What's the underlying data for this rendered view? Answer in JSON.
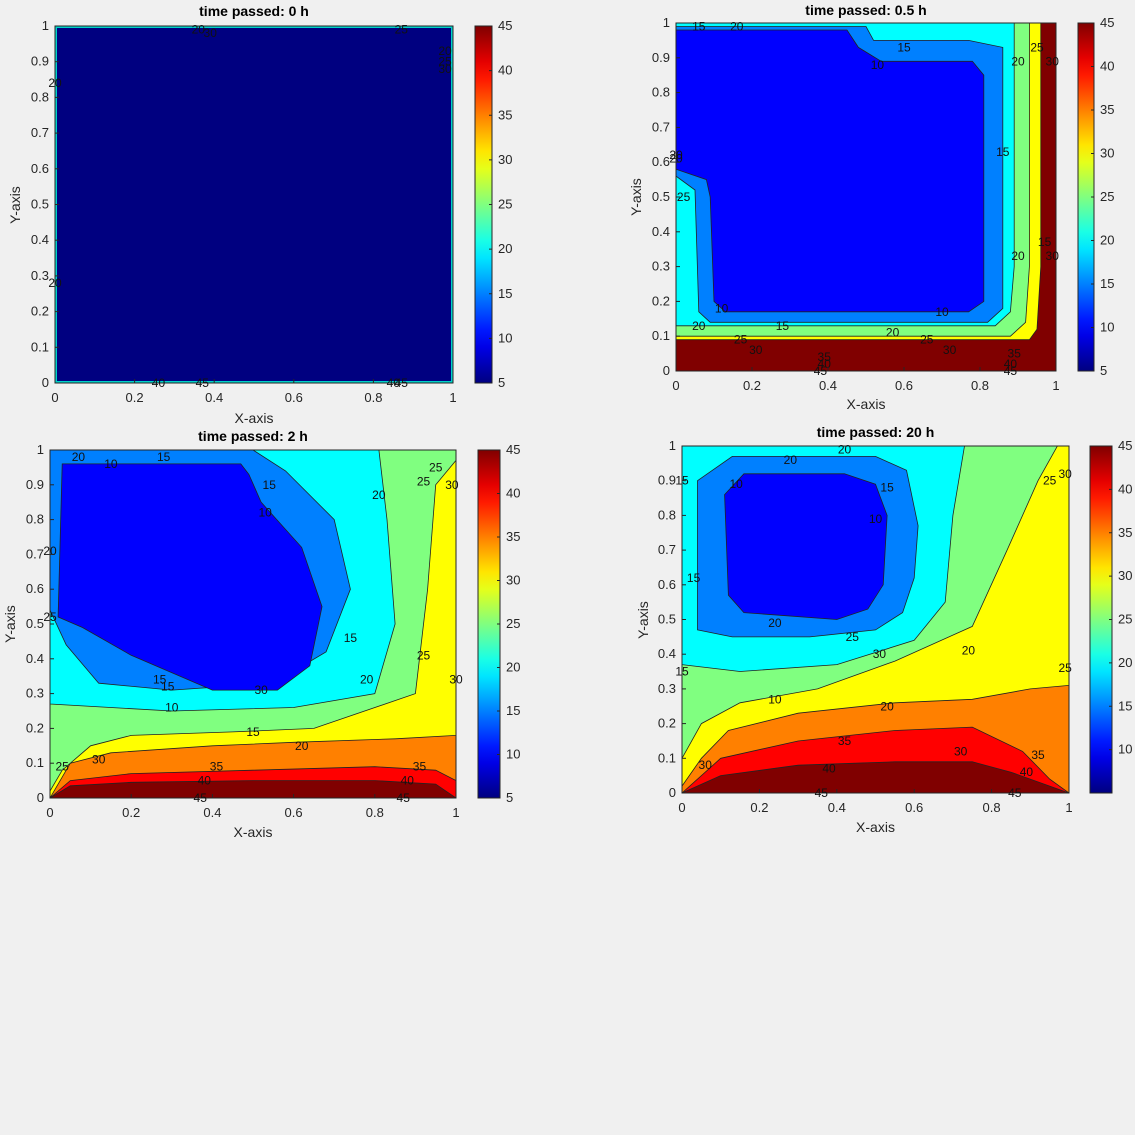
{
  "chart_data": [
    {
      "type": "contourf",
      "title": "time passed: 0 h",
      "xlabel": "X-axis",
      "ylabel": "Y-axis",
      "xlim": [
        0,
        1
      ],
      "ylim": [
        0,
        1
      ],
      "xticks": [
        "0",
        "0.2",
        "0.4",
        "0.6",
        "0.8",
        "1"
      ],
      "yticks": [
        "0",
        "0.1",
        "0.2",
        "0.3",
        "0.4",
        "0.5",
        "0.6",
        "0.7",
        "0.8",
        "0.9",
        "1"
      ],
      "colorbar": {
        "min": 5,
        "max": 45,
        "ticks": [
          "5",
          "10",
          "15",
          "20",
          "25",
          "30",
          "35",
          "40",
          "45"
        ]
      },
      "levels": [
        {
          "value": 5,
          "label": "5"
        }
      ],
      "contour_labels": [
        "20",
        "25",
        "30",
        "20",
        "25",
        "30",
        "40",
        "45",
        "40",
        "45",
        "20",
        "20"
      ]
    },
    {
      "type": "contourf",
      "title": "time passed: 0.5 h",
      "xlabel": "X-axis",
      "ylabel": "Y-axis",
      "xlim": [
        0,
        1
      ],
      "ylim": [
        0,
        1
      ],
      "xticks": [
        "0",
        "0.2",
        "0.4",
        "0.6",
        "0.8",
        "1"
      ],
      "yticks": [
        "0",
        "0.1",
        "0.2",
        "0.3",
        "0.4",
        "0.5",
        "0.6",
        "0.7",
        "0.8",
        "0.9",
        "1"
      ],
      "colorbar": {
        "min": 5,
        "max": 45,
        "ticks": [
          "5",
          "10",
          "15",
          "20",
          "25",
          "30",
          "35",
          "40",
          "45"
        ]
      },
      "levels": [
        {
          "value": 30,
          "label": "30",
          "boundary": [
            [
              0,
              0.09
            ],
            [
              0.93,
              0.09
            ],
            [
              0.95,
              0.12
            ],
            [
              0.96,
              0.3
            ],
            [
              0.96,
              1
            ],
            [
              0,
              1
            ]
          ]
        },
        {
          "value": 25,
          "label": "25",
          "boundary": [
            [
              0,
              0.1
            ],
            [
              0.88,
              0.1
            ],
            [
              0.92,
              0.14
            ],
            [
              0.93,
              0.3
            ],
            [
              0.93,
              1
            ],
            [
              0,
              1
            ]
          ]
        },
        {
          "value": 20,
          "label": "20",
          "boundary": [
            [
              0,
              0.13
            ],
            [
              0.84,
              0.13
            ],
            [
              0.88,
              0.17
            ],
            [
              0.89,
              0.3
            ],
            [
              0.89,
              1
            ],
            [
              0,
              1
            ]
          ]
        },
        {
          "value": 15,
          "label": "15",
          "boundary": [
            [
              0,
              0.56
            ],
            [
              0.05,
              0.52
            ],
            [
              0.06,
              0.17
            ],
            [
              0.09,
              0.14
            ],
            [
              0.82,
              0.14
            ],
            [
              0.86,
              0.18
            ],
            [
              0.86,
              0.93
            ],
            [
              0.77,
              0.95
            ],
            [
              0.52,
              0.95
            ],
            [
              0.5,
              0.99
            ],
            [
              0,
              0.99
            ]
          ]
        },
        {
          "value": 10,
          "label": "10",
          "boundary": [
            [
              0,
              0.58
            ],
            [
              0.08,
              0.55
            ],
            [
              0.09,
              0.5
            ],
            [
              0.1,
              0.2
            ],
            [
              0.13,
              0.17
            ],
            [
              0.77,
              0.17
            ],
            [
              0.81,
              0.2
            ],
            [
              0.81,
              0.85
            ],
            [
              0.78,
              0.89
            ],
            [
              0.54,
              0.89
            ],
            [
              0.48,
              0.93
            ],
            [
              0.45,
              0.98
            ],
            [
              0,
              0.98
            ]
          ]
        }
      ],
      "contour_labels": [
        "15",
        "20",
        "15",
        "10",
        "20",
        "25",
        "30",
        "15",
        "20",
        "25",
        "30",
        "20",
        "15",
        "10",
        "15",
        "20",
        "25",
        "30",
        "35",
        "40",
        "45",
        "10",
        "45",
        "40",
        "35",
        "20",
        "25",
        "30",
        "20"
      ]
    },
    {
      "type": "contourf",
      "title": "time passed: 2 h",
      "xlabel": "X-axis",
      "ylabel": "Y-axis",
      "xlim": [
        0,
        1
      ],
      "ylim": [
        0,
        1
      ],
      "xticks": [
        "0",
        "0.2",
        "0.4",
        "0.6",
        "0.8",
        "1"
      ],
      "yticks": [
        "0",
        "0.1",
        "0.2",
        "0.3",
        "0.4",
        "0.5",
        "0.6",
        "0.7",
        "0.8",
        "0.9",
        "1"
      ],
      "colorbar": {
        "min": 5,
        "max": 45,
        "ticks": [
          "5",
          "10",
          "15",
          "20",
          "25",
          "30",
          "35",
          "40",
          "45"
        ]
      },
      "levels": [
        {
          "value": 40,
          "label": "40",
          "boundary": [
            [
              0,
              0
            ],
            [
              0.05,
              0.035
            ],
            [
              0.2,
              0.045
            ],
            [
              0.5,
              0.05
            ],
            [
              0.8,
              0.05
            ],
            [
              0.95,
              0.04
            ],
            [
              1,
              0
            ],
            [
              1,
              1
            ],
            [
              0,
              1
            ]
          ]
        },
        {
          "value": 35,
          "label": "35",
          "boundary": [
            [
              0,
              0
            ],
            [
              0.05,
              0.05
            ],
            [
              0.2,
              0.07
            ],
            [
              0.5,
              0.08
            ],
            [
              0.8,
              0.09
            ],
            [
              0.95,
              0.08
            ],
            [
              1,
              0.05
            ],
            [
              1,
              1
            ],
            [
              0,
              1
            ]
          ]
        },
        {
          "value": 30,
          "label": "30",
          "boundary": [
            [
              0,
              0
            ],
            [
              0.05,
              0.1
            ],
            [
              0.15,
              0.13
            ],
            [
              0.4,
              0.15
            ],
            [
              0.6,
              0.16
            ],
            [
              0.85,
              0.17
            ],
            [
              1,
              0.18
            ],
            [
              1,
              1
            ],
            [
              0,
              1
            ]
          ]
        },
        {
          "value": 25,
          "label": "25",
          "boundary": [
            [
              0,
              0.02
            ],
            [
              0.03,
              0.08
            ],
            [
              0.1,
              0.15
            ],
            [
              0.2,
              0.18
            ],
            [
              0.45,
              0.19
            ],
            [
              0.65,
              0.2
            ],
            [
              0.9,
              0.3
            ],
            [
              0.93,
              0.6
            ],
            [
              0.95,
              0.9
            ],
            [
              1,
              0.97
            ],
            [
              1,
              1
            ],
            [
              0,
              1
            ]
          ]
        },
        {
          "value": 20,
          "label": "20",
          "boundary": [
            [
              0,
              0.27
            ],
            [
              0.3,
              0.25
            ],
            [
              0.6,
              0.26
            ],
            [
              0.8,
              0.3
            ],
            [
              0.85,
              0.5
            ],
            [
              0.83,
              0.8
            ],
            [
              0.81,
              1
            ],
            [
              0,
              1
            ]
          ]
        },
        {
          "value": 15,
          "label": "15",
          "boundary": [
            [
              0,
              0.54
            ],
            [
              0.04,
              0.44
            ],
            [
              0.12,
              0.33
            ],
            [
              0.3,
              0.31
            ],
            [
              0.55,
              0.33
            ],
            [
              0.68,
              0.42
            ],
            [
              0.74,
              0.6
            ],
            [
              0.7,
              0.8
            ],
            [
              0.58,
              0.94
            ],
            [
              0.5,
              1
            ],
            [
              0,
              1
            ]
          ]
        },
        {
          "value": 10,
          "label": "10",
          "boundary": [
            [
              0.02,
              0.52
            ],
            [
              0.08,
              0.49
            ],
            [
              0.2,
              0.41
            ],
            [
              0.4,
              0.31
            ],
            [
              0.56,
              0.31
            ],
            [
              0.64,
              0.38
            ],
            [
              0.67,
              0.55
            ],
            [
              0.62,
              0.72
            ],
            [
              0.52,
              0.85
            ],
            [
              0.49,
              0.93
            ],
            [
              0.47,
              0.96
            ],
            [
              0.03,
              0.96
            ]
          ]
        }
      ],
      "contour_labels": [
        "20",
        "10",
        "15",
        "15",
        "10",
        "20",
        "25",
        "30",
        "15",
        "20",
        "25",
        "30",
        "20",
        "15",
        "10",
        "15",
        "20",
        "25",
        "30",
        "35",
        "40",
        "45",
        "25",
        "30",
        "35",
        "40",
        "45",
        "15",
        "25"
      ]
    },
    {
      "type": "contourf",
      "title": "time passed: 20 h",
      "xlabel": "X-axis",
      "ylabel": "Y-axis",
      "xlim": [
        0,
        1
      ],
      "ylim": [
        0,
        1
      ],
      "xticks": [
        "0",
        "0.2",
        "0.4",
        "0.6",
        "0.8",
        "1"
      ],
      "yticks": [
        "0",
        "0.1",
        "0.2",
        "0.3",
        "0.4",
        "0.5",
        "0.6",
        "0.7",
        "0.8",
        "0.9",
        "1"
      ],
      "colorbar": {
        "min": 5,
        "max": 45,
        "ticks": [
          "10",
          "15",
          "20",
          "25",
          "30",
          "35",
          "40",
          "45"
        ]
      },
      "levels": [
        {
          "value": 40,
          "label": "40",
          "boundary": [
            [
              0,
              0
            ],
            [
              0.1,
              0.05
            ],
            [
              0.3,
              0.08
            ],
            [
              0.55,
              0.09
            ],
            [
              0.75,
              0.09
            ],
            [
              0.85,
              0.06
            ],
            [
              0.95,
              0.02
            ],
            [
              1,
              0
            ],
            [
              1,
              1
            ],
            [
              0,
              1
            ]
          ]
        },
        {
          "value": 35,
          "label": "35",
          "boundary": [
            [
              0,
              0
            ],
            [
              0.1,
              0.1
            ],
            [
              0.3,
              0.15
            ],
            [
              0.55,
              0.18
            ],
            [
              0.75,
              0.19
            ],
            [
              0.88,
              0.12
            ],
            [
              0.95,
              0.04
            ],
            [
              1,
              0
            ],
            [
              1,
              1
            ],
            [
              0,
              1
            ]
          ]
        },
        {
          "value": 30,
          "label": "30",
          "boundary": [
            [
              0,
              0.02
            ],
            [
              0.05,
              0.1
            ],
            [
              0.12,
              0.18
            ],
            [
              0.3,
              0.23
            ],
            [
              0.55,
              0.26
            ],
            [
              0.75,
              0.27
            ],
            [
              0.9,
              0.3
            ],
            [
              1,
              0.31
            ],
            [
              1,
              1
            ],
            [
              0,
              1
            ]
          ]
        },
        {
          "value": 25,
          "label": "25",
          "boundary": [
            [
              0,
              0.1
            ],
            [
              0.05,
              0.2
            ],
            [
              0.15,
              0.26
            ],
            [
              0.35,
              0.3
            ],
            [
              0.55,
              0.38
            ],
            [
              0.75,
              0.48
            ],
            [
              0.84,
              0.7
            ],
            [
              0.92,
              0.9
            ],
            [
              0.97,
              1
            ],
            [
              0,
              1
            ]
          ]
        },
        {
          "value": 20,
          "label": "20",
          "boundary": [
            [
              0,
              0.37
            ],
            [
              0.15,
              0.35
            ],
            [
              0.4,
              0.37
            ],
            [
              0.6,
              0.44
            ],
            [
              0.68,
              0.55
            ],
            [
              0.7,
              0.8
            ],
            [
              0.73,
              1
            ],
            [
              0,
              1
            ]
          ]
        },
        {
          "value": 15,
          "label": "15",
          "boundary": [
            [
              0.04,
              0.47
            ],
            [
              0.13,
              0.45
            ],
            [
              0.33,
              0.45
            ],
            [
              0.5,
              0.47
            ],
            [
              0.57,
              0.52
            ],
            [
              0.6,
              0.62
            ],
            [
              0.61,
              0.77
            ],
            [
              0.58,
              0.93
            ],
            [
              0.5,
              0.97
            ],
            [
              0.13,
              0.97
            ],
            [
              0.04,
              0.9
            ]
          ]
        },
        {
          "value": 10,
          "label": "10",
          "boundary": [
            [
              0.12,
              0.57
            ],
            [
              0.16,
              0.52
            ],
            [
              0.4,
              0.5
            ],
            [
              0.48,
              0.53
            ],
            [
              0.52,
              0.6
            ],
            [
              0.53,
              0.8
            ],
            [
              0.5,
              0.89
            ],
            [
              0.42,
              0.92
            ],
            [
              0.16,
              0.92
            ],
            [
              0.11,
              0.86
            ]
          ]
        }
      ],
      "contour_labels": [
        "20",
        "15",
        "10",
        "20",
        "10",
        "15",
        "25",
        "30",
        "15",
        "20",
        "25",
        "30",
        "20",
        "15",
        "10",
        "20",
        "25",
        "30",
        "35",
        "40",
        "45",
        "45",
        "40",
        "35",
        "30"
      ]
    }
  ]
}
